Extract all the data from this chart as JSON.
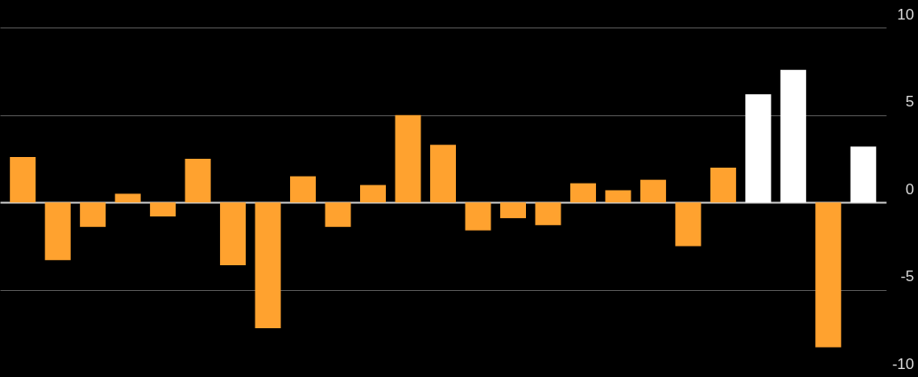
{
  "chart_data": {
    "type": "bar",
    "categories": [
      null,
      null,
      null,
      null,
      null,
      null,
      null,
      null,
      null,
      null,
      null,
      null,
      null,
      null,
      null,
      null,
      null,
      null,
      null,
      null,
      null,
      null,
      null,
      null,
      null
    ],
    "values": [
      2.6,
      -3.3,
      -1.4,
      0.5,
      -0.8,
      2.5,
      -3.6,
      -7.2,
      1.5,
      -1.4,
      1.0,
      5.0,
      3.3,
      -1.6,
      -0.9,
      -1.3,
      1.1,
      0.7,
      1.3,
      -2.5,
      2.0,
      6.2,
      7.6,
      -8.3,
      3.2
    ],
    "colors": [
      "#ffa22f",
      "#ffa22f",
      "#ffa22f",
      "#ffa22f",
      "#ffa22f",
      "#ffa22f",
      "#ffa22f",
      "#ffa22f",
      "#ffa22f",
      "#ffa22f",
      "#ffa22f",
      "#ffa22f",
      "#ffa22f",
      "#ffa22f",
      "#ffa22f",
      "#ffa22f",
      "#ffa22f",
      "#ffa22f",
      "#ffa22f",
      "#ffa22f",
      "#ffa22f",
      "#ffffff",
      "#ffffff",
      "#ffa22f",
      "#ffffff"
    ],
    "ylim": [
      -10,
      11.6
    ],
    "yticks": [
      10,
      5,
      0,
      -5,
      -10
    ],
    "grid": "y",
    "tick_labels": "y"
  }
}
